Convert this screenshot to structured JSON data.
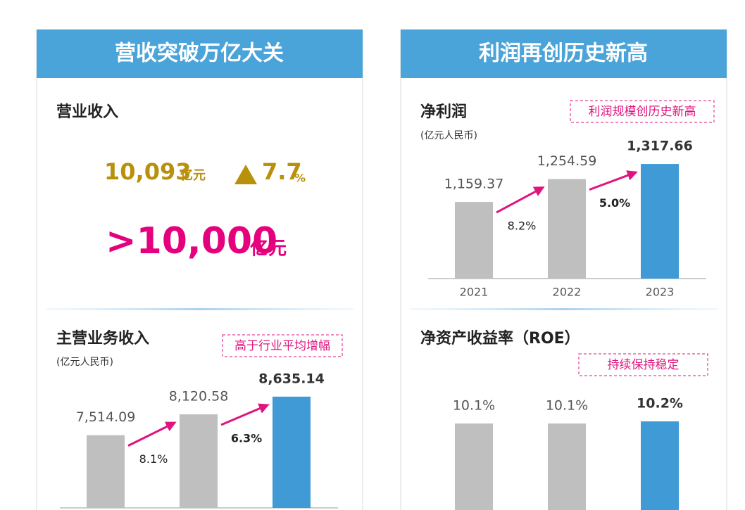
{
  "left": {
    "title": "营收突破万亿大关",
    "revenue": {
      "label": "营业收入",
      "value": "10,093",
      "unit": "亿元",
      "growth": "7.7",
      "growth_unit": "%"
    },
    "milestone": {
      "value": ">10,000",
      "unit": "亿元"
    },
    "chart": {
      "type": "bar",
      "title": "主营业务收入",
      "unit": "(亿元人民币)",
      "tag": "高于行业平均增幅",
      "values": [
        7514.09,
        8120.58,
        8635.14
      ],
      "value_labels": [
        "7,514.09",
        "8,120.58",
        "8,635.14"
      ],
      "growth_labels": [
        "8.1%",
        "6.3%"
      ],
      "ylim": [
        5400,
        9000
      ],
      "colors": [
        "#bfbfbf",
        "#bfbfbf",
        "#3f9ad6"
      ]
    }
  },
  "right": {
    "title": "利润再创历史新高",
    "charts": [
      {
        "type": "bar",
        "title": "净利润",
        "unit": "(亿元人民币)",
        "tag": "利润规模创历史新高",
        "categories": [
          "2021",
          "2022",
          "2023"
        ],
        "values": [
          1159.37,
          1254.59,
          1317.66
        ],
        "value_labels": [
          "1,159.37",
          "1,254.59",
          "1,317.66"
        ],
        "growth_labels": [
          "8.2%",
          "5.0%"
        ],
        "ylim": [
          840,
          1400
        ],
        "colors": [
          "#bfbfbf",
          "#bfbfbf",
          "#3f9ad6"
        ]
      },
      {
        "type": "bar",
        "title": "净资产收益率（ROE）",
        "tag": "持续保持稳定",
        "values": [
          10.1,
          10.1,
          10.2
        ],
        "value_labels": [
          "10.1%",
          "10.1%",
          "10.2%"
        ],
        "ylim": [
          6,
          10.5
        ],
        "colors": [
          "#bfbfbf",
          "#bfbfbf",
          "#3f9ad6"
        ]
      }
    ]
  }
}
